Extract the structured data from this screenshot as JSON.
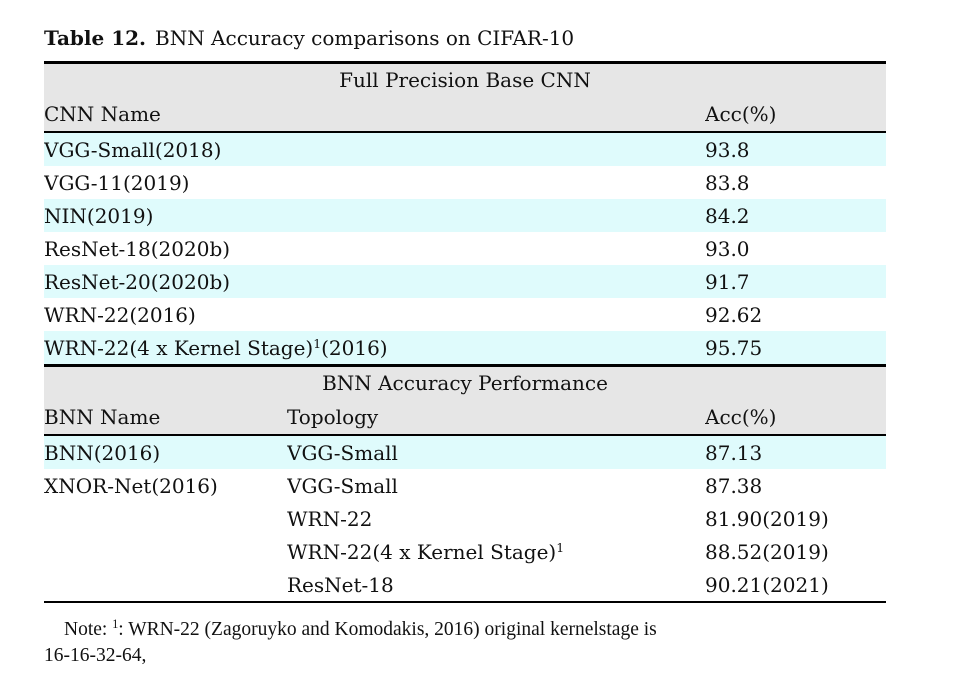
{
  "title": {
    "label": "Table 12.",
    "text": "BNN Accuracy comparisons on CIFAR-10"
  },
  "colors": {
    "header_bg": "#e6e6e6",
    "highlight_bg": "#dffbfc",
    "rule": "#000000"
  },
  "table": {
    "sections": [
      {
        "header": "Full Precision Base CNN",
        "columns": [
          {
            "label": "CNN Name",
            "span": 2
          },
          {
            "label": "Acc(%)",
            "span": 1
          }
        ],
        "rows": [
          {
            "highlight": true,
            "cells": [
              {
                "span": 2,
                "segs": [
                  {
                    "t": "VGG-Small(2018)"
                  }
                ]
              },
              {
                "span": 1,
                "segs": [
                  {
                    "t": "93.8"
                  }
                ]
              }
            ]
          },
          {
            "highlight": false,
            "cells": [
              {
                "span": 2,
                "segs": [
                  {
                    "t": "VGG-11(2019)"
                  }
                ]
              },
              {
                "span": 1,
                "segs": [
                  {
                    "t": "83.8"
                  }
                ]
              }
            ]
          },
          {
            "highlight": true,
            "cells": [
              {
                "span": 2,
                "segs": [
                  {
                    "t": "NIN(2019)"
                  }
                ]
              },
              {
                "span": 1,
                "segs": [
                  {
                    "t": "84.2"
                  }
                ]
              }
            ]
          },
          {
            "highlight": false,
            "cells": [
              {
                "span": 2,
                "segs": [
                  {
                    "t": "ResNet-18(2020b)"
                  }
                ]
              },
              {
                "span": 1,
                "segs": [
                  {
                    "t": "93.0"
                  }
                ]
              }
            ]
          },
          {
            "highlight": true,
            "cells": [
              {
                "span": 2,
                "segs": [
                  {
                    "t": "ResNet-20(2020b)"
                  }
                ]
              },
              {
                "span": 1,
                "segs": [
                  {
                    "t": "91.7"
                  }
                ]
              }
            ]
          },
          {
            "highlight": false,
            "cells": [
              {
                "span": 2,
                "segs": [
                  {
                    "t": "WRN-22(2016)"
                  }
                ]
              },
              {
                "span": 1,
                "segs": [
                  {
                    "t": "92.62"
                  }
                ]
              }
            ]
          },
          {
            "highlight": true,
            "cells": [
              {
                "span": 2,
                "segs": [
                  {
                    "t": "WRN-22(4 x Kernel Stage)"
                  },
                  {
                    "t": "1",
                    "sup": true
                  },
                  {
                    "t": "(2016)"
                  }
                ]
              },
              {
                "span": 1,
                "segs": [
                  {
                    "t": "95.75"
                  }
                ]
              }
            ]
          }
        ]
      },
      {
        "header": "BNN Accuracy Performance",
        "columns": [
          {
            "label": "BNN Name",
            "span": 1
          },
          {
            "label": "Topology",
            "span": 1
          },
          {
            "label": "Acc(%)",
            "span": 1
          }
        ],
        "rows": [
          {
            "highlight": true,
            "cells": [
              {
                "span": 1,
                "segs": [
                  {
                    "t": "BNN(2016)"
                  }
                ]
              },
              {
                "span": 1,
                "segs": [
                  {
                    "t": "VGG-Small"
                  }
                ]
              },
              {
                "span": 1,
                "segs": [
                  {
                    "t": "87.13"
                  }
                ]
              }
            ]
          },
          {
            "highlight": false,
            "cells": [
              {
                "span": 1,
                "segs": [
                  {
                    "t": "XNOR-Net(2016)"
                  }
                ]
              },
              {
                "span": 1,
                "segs": [
                  {
                    "t": "VGG-Small"
                  }
                ]
              },
              {
                "span": 1,
                "segs": [
                  {
                    "t": "87.38"
                  }
                ]
              }
            ]
          },
          {
            "highlight": false,
            "cells": [
              {
                "span": 1,
                "segs": []
              },
              {
                "span": 1,
                "segs": [
                  {
                    "t": "WRN-22"
                  }
                ]
              },
              {
                "span": 1,
                "segs": [
                  {
                    "t": "81.90(2019)"
                  }
                ]
              }
            ]
          },
          {
            "highlight": false,
            "cells": [
              {
                "span": 1,
                "segs": []
              },
              {
                "span": 1,
                "segs": [
                  {
                    "t": "WRN-22(4 x Kernel Stage)"
                  },
                  {
                    "t": "1",
                    "sup": true
                  }
                ]
              },
              {
                "span": 1,
                "segs": [
                  {
                    "t": "88.52(2019)"
                  }
                ]
              }
            ]
          },
          {
            "highlight": false,
            "cells": [
              {
                "span": 1,
                "segs": []
              },
              {
                "span": 1,
                "segs": [
                  {
                    "t": "ResNet-18"
                  }
                ]
              },
              {
                "span": 1,
                "segs": [
                  {
                    "t": "90.21(2021)"
                  }
                ]
              }
            ]
          }
        ]
      }
    ]
  },
  "note": {
    "segments": [
      {
        "t": "Note: "
      },
      {
        "t": "1",
        "sup": true
      },
      {
        "t": ": WRN-22 (Zagoruyko and Komodakis, 2016) original kernelstage is"
      },
      {
        "br": true
      },
      {
        "t": "16-16-32-64,"
      }
    ]
  }
}
